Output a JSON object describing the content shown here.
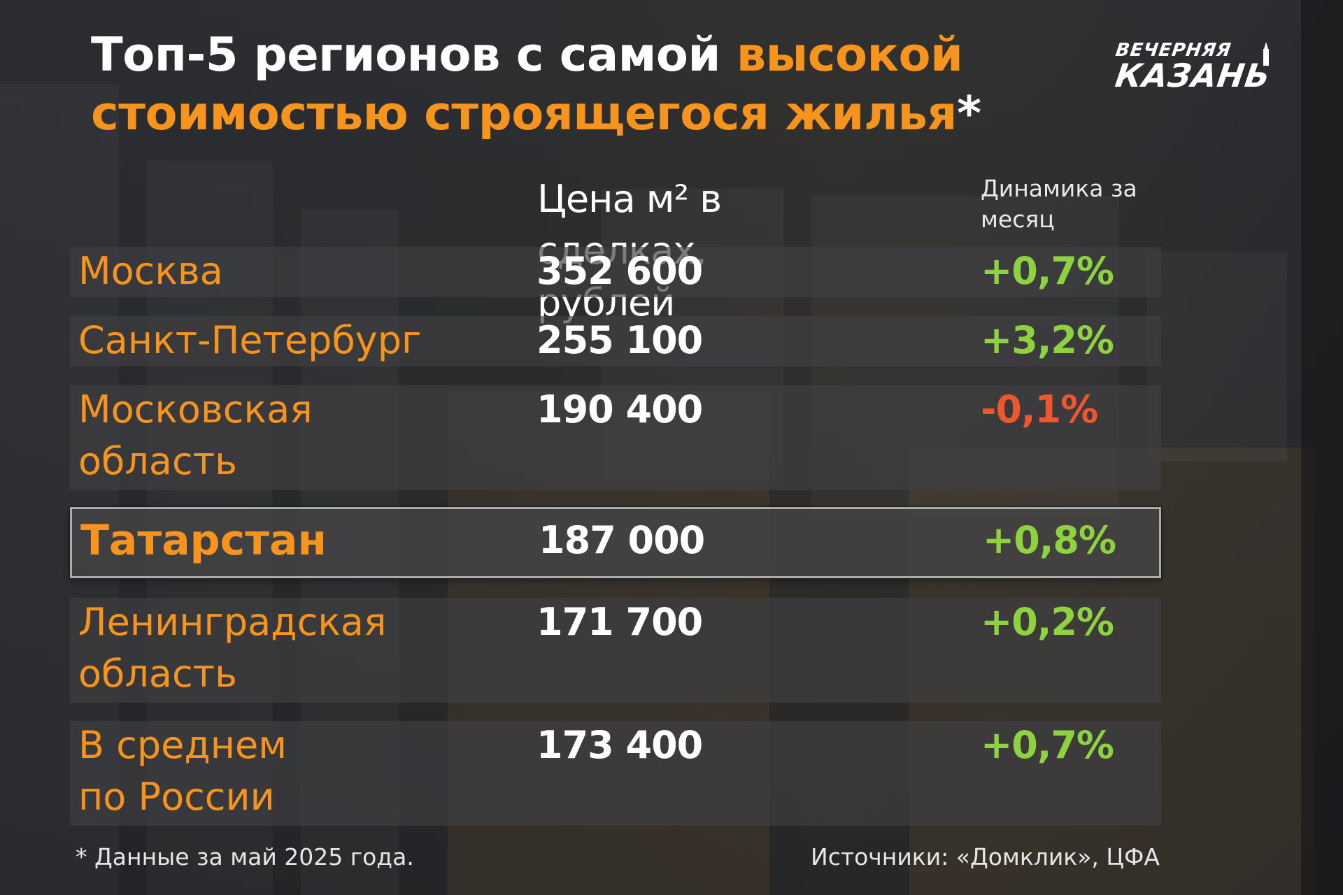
{
  "title": {
    "part1": "Топ-5 регионов с самой ",
    "part2": "высокой",
    "part3": "стоимостью строящегося жилья",
    "asterisk": "*"
  },
  "logo": {
    "line1": "ВЕЧЕРНЯЯ",
    "line2": "КАЗАНЬ"
  },
  "colors": {
    "accent": "#f7941d",
    "positive": "#8ed23f",
    "negative": "#f0562e"
  },
  "chart_data": {
    "type": "table",
    "columns": [
      "",
      "Цена  м² в сделках, рублей",
      "Динамика за месяц"
    ],
    "price_header": [
      "Цена  м² в сделках,",
      "рублей"
    ],
    "change_header": [
      "Динамика за",
      "месяц"
    ],
    "rows": [
      {
        "region": [
          "Москва"
        ],
        "price": "352 600",
        "change": "+0,7%",
        "trend": "up",
        "highlight": false
      },
      {
        "region": [
          "Санкт-Петербург"
        ],
        "price": "255 100",
        "change": "+3,2%",
        "trend": "up",
        "highlight": false
      },
      {
        "region": [
          "Московская",
          "область"
        ],
        "price": "190 400",
        "change": "-0,1%",
        "trend": "down",
        "highlight": false
      },
      {
        "region": [
          "Татарстан"
        ],
        "price": "187 000",
        "change": "+0,8%",
        "trend": "up",
        "highlight": true
      },
      {
        "region": [
          "Ленинградская",
          "область"
        ],
        "price": "171 700",
        "change": "+0,2%",
        "trend": "up",
        "highlight": false
      },
      {
        "region": [
          "В среднем",
          "по России"
        ],
        "price": "173 400",
        "change": "+0,7%",
        "trend": "up",
        "highlight": false
      }
    ]
  },
  "footnote": "* Данные за май 2025 года.",
  "source": "Источники: «Домклик», ЦФА"
}
